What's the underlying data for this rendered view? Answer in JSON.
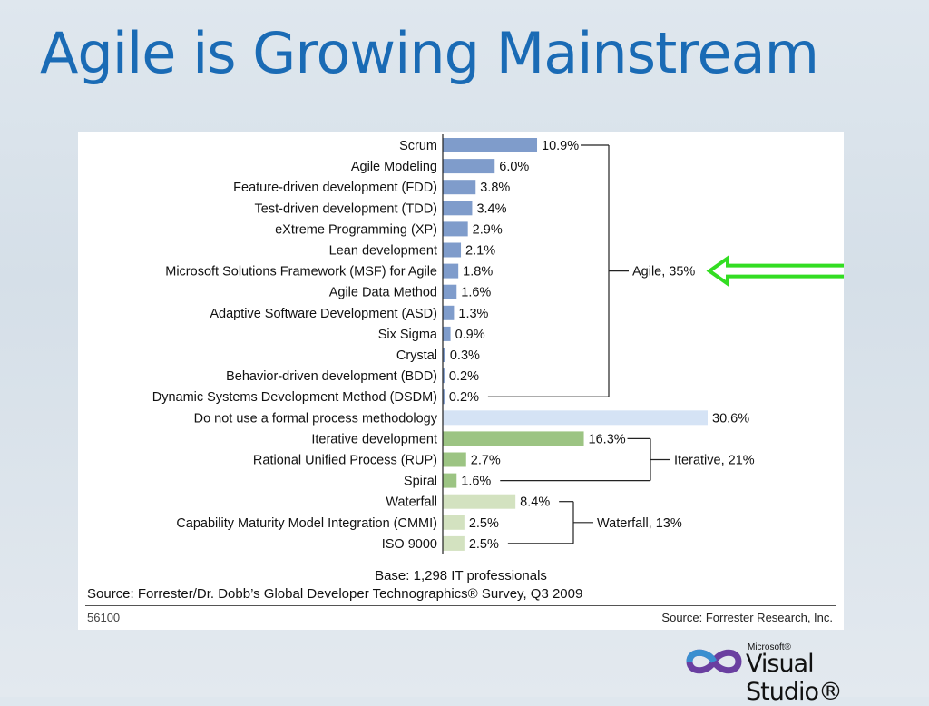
{
  "slide": {
    "title": "Agile is Growing Mainstream"
  },
  "chart_data": {
    "type": "bar",
    "orientation": "horizontal",
    "title": "",
    "xlabel": "",
    "ylabel": "",
    "grid": false,
    "categories": [
      "Scrum",
      "Agile Modeling",
      "Feature-driven development (FDD)",
      "Test-driven development (TDD)",
      "eXtreme Programming (XP)",
      "Lean development",
      "Microsoft Solutions Framework (MSF) for Agile",
      "Agile Data Method",
      "Adaptive Software Development (ASD)",
      "Six Sigma",
      "Crystal",
      "Behavior-driven development (BDD)",
      "Dynamic Systems Development Method (DSDM)",
      "Do not use a formal process methodology",
      "Iterative development",
      "Rational Unified Process (RUP)",
      "Spiral",
      "Waterfall",
      "Capability Maturity Model Integration (CMMI)",
      "ISO 9000"
    ],
    "values": [
      10.9,
      6.0,
      3.8,
      3.4,
      2.9,
      2.1,
      1.8,
      1.6,
      1.3,
      0.9,
      0.3,
      0.2,
      0.2,
      30.6,
      16.3,
      2.7,
      1.6,
      8.4,
      2.5,
      2.5
    ],
    "value_labels": [
      "10.9%",
      "6.0%",
      "3.8%",
      "3.4%",
      "2.9%",
      "2.1%",
      "1.8%",
      "1.6%",
      "1.3%",
      "0.9%",
      "0.3%",
      "0.2%",
      "0.2%",
      "30.6%",
      "16.3%",
      "2.7%",
      "1.6%",
      "8.4%",
      "2.5%",
      "2.5%"
    ],
    "groups": [
      "agile",
      "agile",
      "agile",
      "agile",
      "agile",
      "agile",
      "agile",
      "agile",
      "agile",
      "agile",
      "agile",
      "agile",
      "agile",
      "none",
      "iterative",
      "iterative",
      "iterative",
      "waterfall",
      "waterfall",
      "waterfall"
    ],
    "group_colors": {
      "agile": "#7f9ccb",
      "none": "#d5e3f5",
      "iterative": "#9cc483",
      "waterfall": "#d3e2c0"
    },
    "brackets": [
      {
        "label": "Agile, 35%",
        "first": 0,
        "last": 12
      },
      {
        "label": "Iterative, 21%",
        "first": 14,
        "last": 16
      },
      {
        "label": "Waterfall, 13%",
        "first": 17,
        "last": 19
      }
    ],
    "xlim": [
      0,
      30.6
    ],
    "base_note": "Base: 1,298 IT professionals",
    "source_note": "Source: Forrester/Dr. Dobb’s Global Developer Technographics® Survey, Q3 2009",
    "footer_id": "56100",
    "footer_source": "Source: Forrester Research, Inc.",
    "highlight_arrow_color": "#33dd22"
  },
  "logo": {
    "small_text": "Microsoft®",
    "big_text": "Visual Studio®"
  }
}
